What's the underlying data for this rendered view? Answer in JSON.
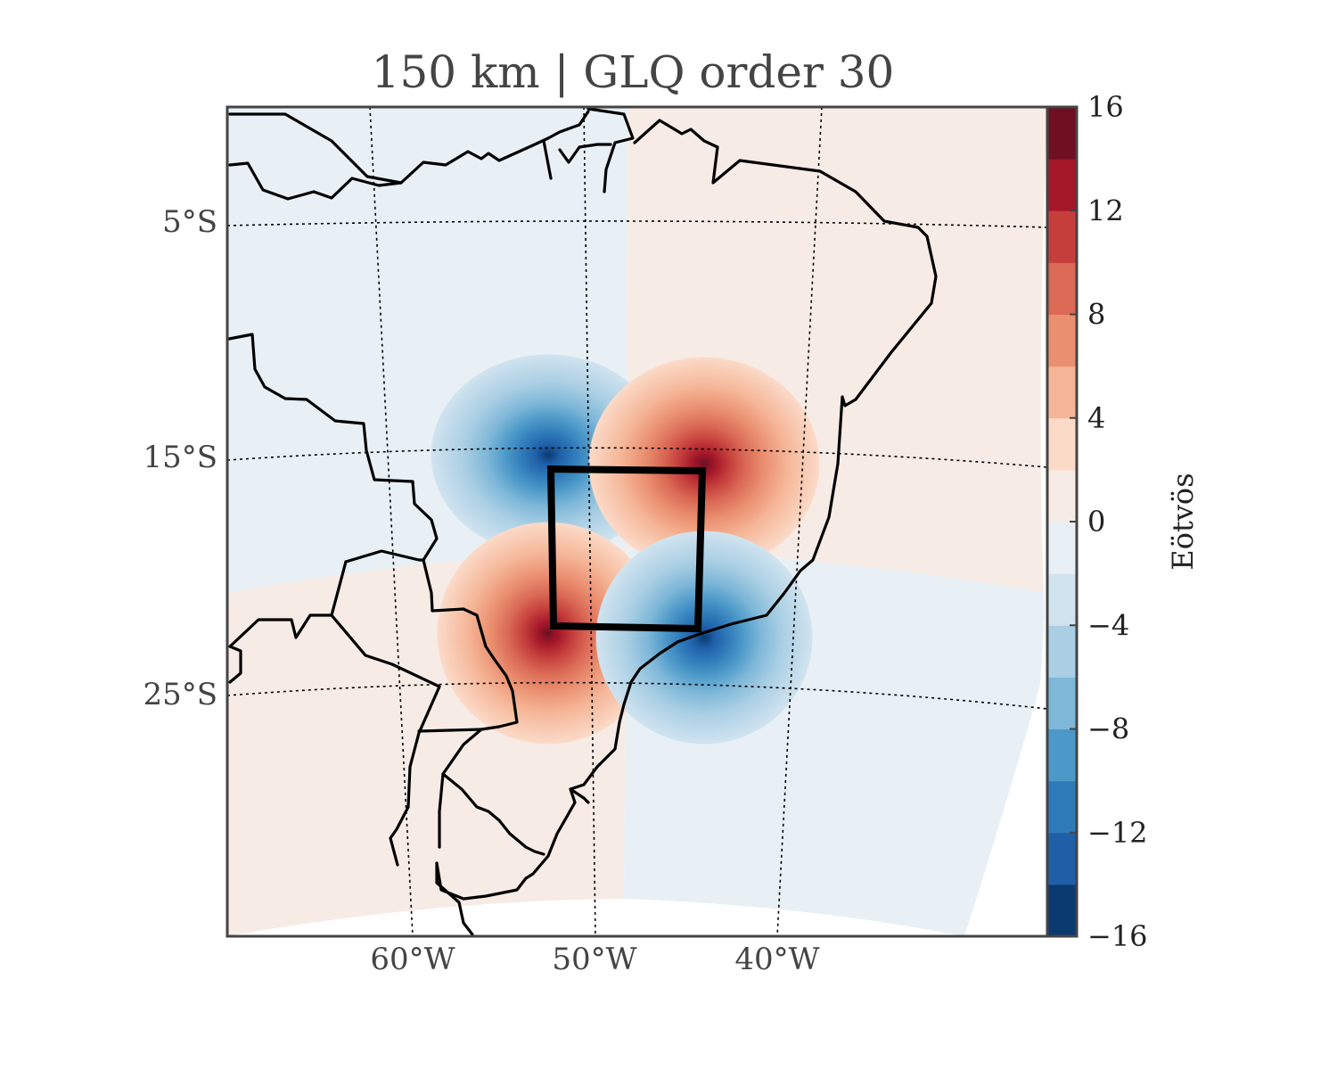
{
  "title": "150 km | GLQ order 30",
  "colorbar": {
    "label": "Eötvös",
    "ticks": [
      "16",
      "12",
      "8",
      "4",
      "0",
      "−4",
      "−8",
      "−12",
      "−16"
    ],
    "min": -16,
    "max": 16,
    "colors": [
      "#0a3a70",
      "#1f5fa8",
      "#2f7ab9",
      "#4c99c9",
      "#7eb7d8",
      "#aacfe4",
      "#d0e3ef",
      "#e8f0f5",
      "#f7ebe6",
      "#fbdac8",
      "#f5b697",
      "#ea8f70",
      "#da6955",
      "#c53e3c",
      "#a5182a",
      "#6e0f22"
    ]
  },
  "axes": {
    "lat_labels": [
      "5°S",
      "15°S",
      "25°S"
    ],
    "lon_labels": [
      "60°W",
      "50°W",
      "40°W"
    ]
  },
  "map": {
    "projection": "conic",
    "field": "gravity gradient tensor component",
    "box": "black rectangle outline",
    "coastlines": true,
    "graticule": "dotted"
  }
}
